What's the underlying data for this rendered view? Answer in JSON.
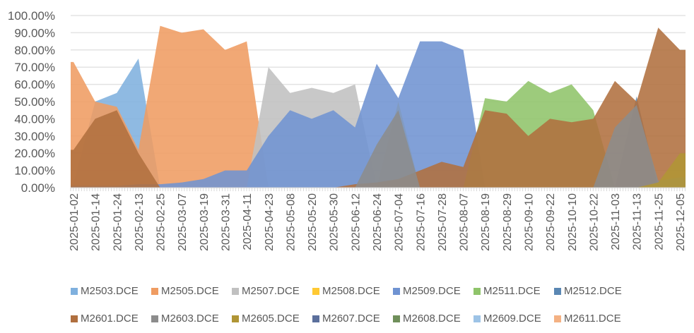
{
  "chart_data": {
    "type": "area",
    "title": "",
    "xlabel": "",
    "ylabel": "",
    "ylim": [
      0,
      100
    ],
    "y_ticks": [
      "0.00%",
      "10.00%",
      "20.00%",
      "30.00%",
      "40.00%",
      "50.00%",
      "60.00%",
      "70.00%",
      "80.00%",
      "90.00%",
      "100.00%"
    ],
    "grid": true,
    "legend_position": "bottom",
    "categories": [
      "2025-01-02",
      "2025-01-14",
      "2025-01-24",
      "2025-02-13",
      "2025-02-25",
      "2025-03-07",
      "2025-03-19",
      "2025-03-31",
      "2025-04-11",
      "2025-04-23",
      "2025-05-08",
      "2025-05-20",
      "2025-05-30",
      "2025-06-12",
      "2025-06-24",
      "2025-07-04",
      "2025-07-16",
      "2025-07-28",
      "2025-08-07",
      "2025-08-19",
      "2025-08-29",
      "2025-09-10",
      "2025-09-22",
      "2025-10-10",
      "2025-10-22",
      "2025-11-03",
      "2025-11-13",
      "2025-11-25",
      "2025-12-05"
    ],
    "series": [
      {
        "name": "M2503.DCE",
        "color": "#7fb0de",
        "values": [
          2,
          50,
          55,
          75,
          0,
          0,
          0,
          0,
          0,
          0,
          0,
          0,
          0,
          0,
          0,
          0,
          0,
          0,
          0,
          0,
          0,
          0,
          0,
          0,
          0,
          0,
          0,
          0,
          0
        ]
      },
      {
        "name": "M2505.DCE",
        "color": "#ef9c62",
        "values": [
          73,
          50,
          47,
          22,
          94,
          90,
          92,
          80,
          85,
          0,
          0,
          0,
          0,
          0,
          0,
          0,
          0,
          0,
          0,
          0,
          0,
          0,
          0,
          0,
          0,
          0,
          0,
          0,
          0
        ]
      },
      {
        "name": "M2507.DCE",
        "color": "#c0c0c0",
        "values": [
          0,
          0,
          0,
          0,
          0,
          0,
          0,
          0,
          0,
          70,
          55,
          58,
          55,
          60,
          0,
          0,
          0,
          0,
          0,
          0,
          0,
          0,
          0,
          0,
          0,
          0,
          0,
          0,
          0
        ]
      },
      {
        "name": "M2508.DCE",
        "color": "#ffc933",
        "values": [
          0,
          0,
          0,
          0,
          0,
          0,
          0,
          0,
          0,
          0,
          0,
          0,
          0,
          0,
          0,
          50,
          0,
          0,
          0,
          0,
          0,
          0,
          0,
          0,
          0,
          0,
          0,
          0,
          0
        ]
      },
      {
        "name": "M2509.DCE",
        "color": "#6f93d2",
        "values": [
          1,
          1,
          1,
          2,
          2,
          3,
          5,
          10,
          10,
          30,
          45,
          40,
          45,
          35,
          72,
          52,
          85,
          85,
          80,
          0,
          0,
          0,
          0,
          0,
          0,
          0,
          0,
          0,
          0
        ]
      },
      {
        "name": "M2511.DCE",
        "color": "#8fc46a",
        "values": [
          0,
          0,
          0,
          0,
          0,
          0,
          0,
          0,
          0,
          0,
          0,
          0,
          0,
          0,
          0,
          0,
          0,
          0,
          0,
          52,
          50,
          62,
          55,
          60,
          45,
          0,
          0,
          0,
          0
        ]
      },
      {
        "name": "M2512.DCE",
        "color": "#5a87b3",
        "values": [
          0,
          0,
          0,
          0,
          0,
          0,
          0,
          0,
          0,
          0,
          0,
          0,
          0,
          0,
          0,
          0,
          0,
          0,
          0,
          0,
          0,
          0,
          0,
          0,
          0,
          0,
          53,
          0,
          0
        ]
      },
      {
        "name": "M2601.DCE",
        "color": "#b06f3f",
        "values": [
          22,
          40,
          45,
          20,
          0,
          0,
          0,
          0,
          0,
          0,
          0,
          0,
          0,
          2,
          3,
          5,
          10,
          15,
          12,
          45,
          43,
          30,
          40,
          38,
          40,
          62,
          50,
          93,
          80
        ]
      },
      {
        "name": "M2603.DCE",
        "color": "#8c8c8c",
        "values": [
          0,
          0,
          0,
          0,
          0,
          0,
          0,
          0,
          0,
          0,
          0,
          0,
          0,
          0,
          25,
          45,
          0,
          0,
          0,
          0,
          0,
          0,
          0,
          0,
          0,
          35,
          48,
          4,
          6
        ]
      },
      {
        "name": "M2605.DCE",
        "color": "#b09535",
        "values": [
          0,
          0,
          0,
          0,
          0,
          0,
          0,
          0,
          0,
          0,
          0,
          0,
          0,
          0,
          0,
          0,
          0,
          0,
          0,
          0,
          0,
          0,
          0,
          0,
          0,
          0,
          0,
          3,
          20
        ]
      },
      {
        "name": "M2607.DCE",
        "color": "#5b6f9c",
        "values": [
          0,
          0,
          0,
          0,
          0,
          0,
          0,
          0,
          0,
          0,
          0,
          0,
          0,
          0,
          0,
          0,
          0,
          0,
          0,
          0,
          0,
          0,
          0,
          0,
          0,
          0,
          0,
          0,
          0
        ]
      },
      {
        "name": "M2608.DCE",
        "color": "#6f8f5a",
        "values": [
          0,
          0,
          0,
          0,
          0,
          0,
          0,
          0,
          0,
          0,
          0,
          0,
          0,
          0,
          0,
          0,
          0,
          0,
          0,
          0,
          0,
          0,
          0,
          0,
          0,
          0,
          0,
          0,
          0
        ]
      },
      {
        "name": "M2609.DCE",
        "color": "#9dc3e6",
        "values": [
          0,
          0,
          0,
          0,
          0,
          0,
          0,
          0,
          0,
          0,
          0,
          0,
          0,
          0,
          0,
          0,
          0,
          0,
          0,
          0,
          0,
          0,
          0,
          0,
          0,
          0,
          0,
          0,
          0
        ]
      },
      {
        "name": "M2611.DCE",
        "color": "#f4b183",
        "values": [
          0,
          0,
          0,
          0,
          0,
          0,
          0,
          0,
          0,
          0,
          0,
          0,
          0,
          0,
          0,
          0,
          0,
          0,
          0,
          0,
          0,
          0,
          0,
          0,
          0,
          0,
          0,
          0,
          0
        ]
      }
    ]
  }
}
